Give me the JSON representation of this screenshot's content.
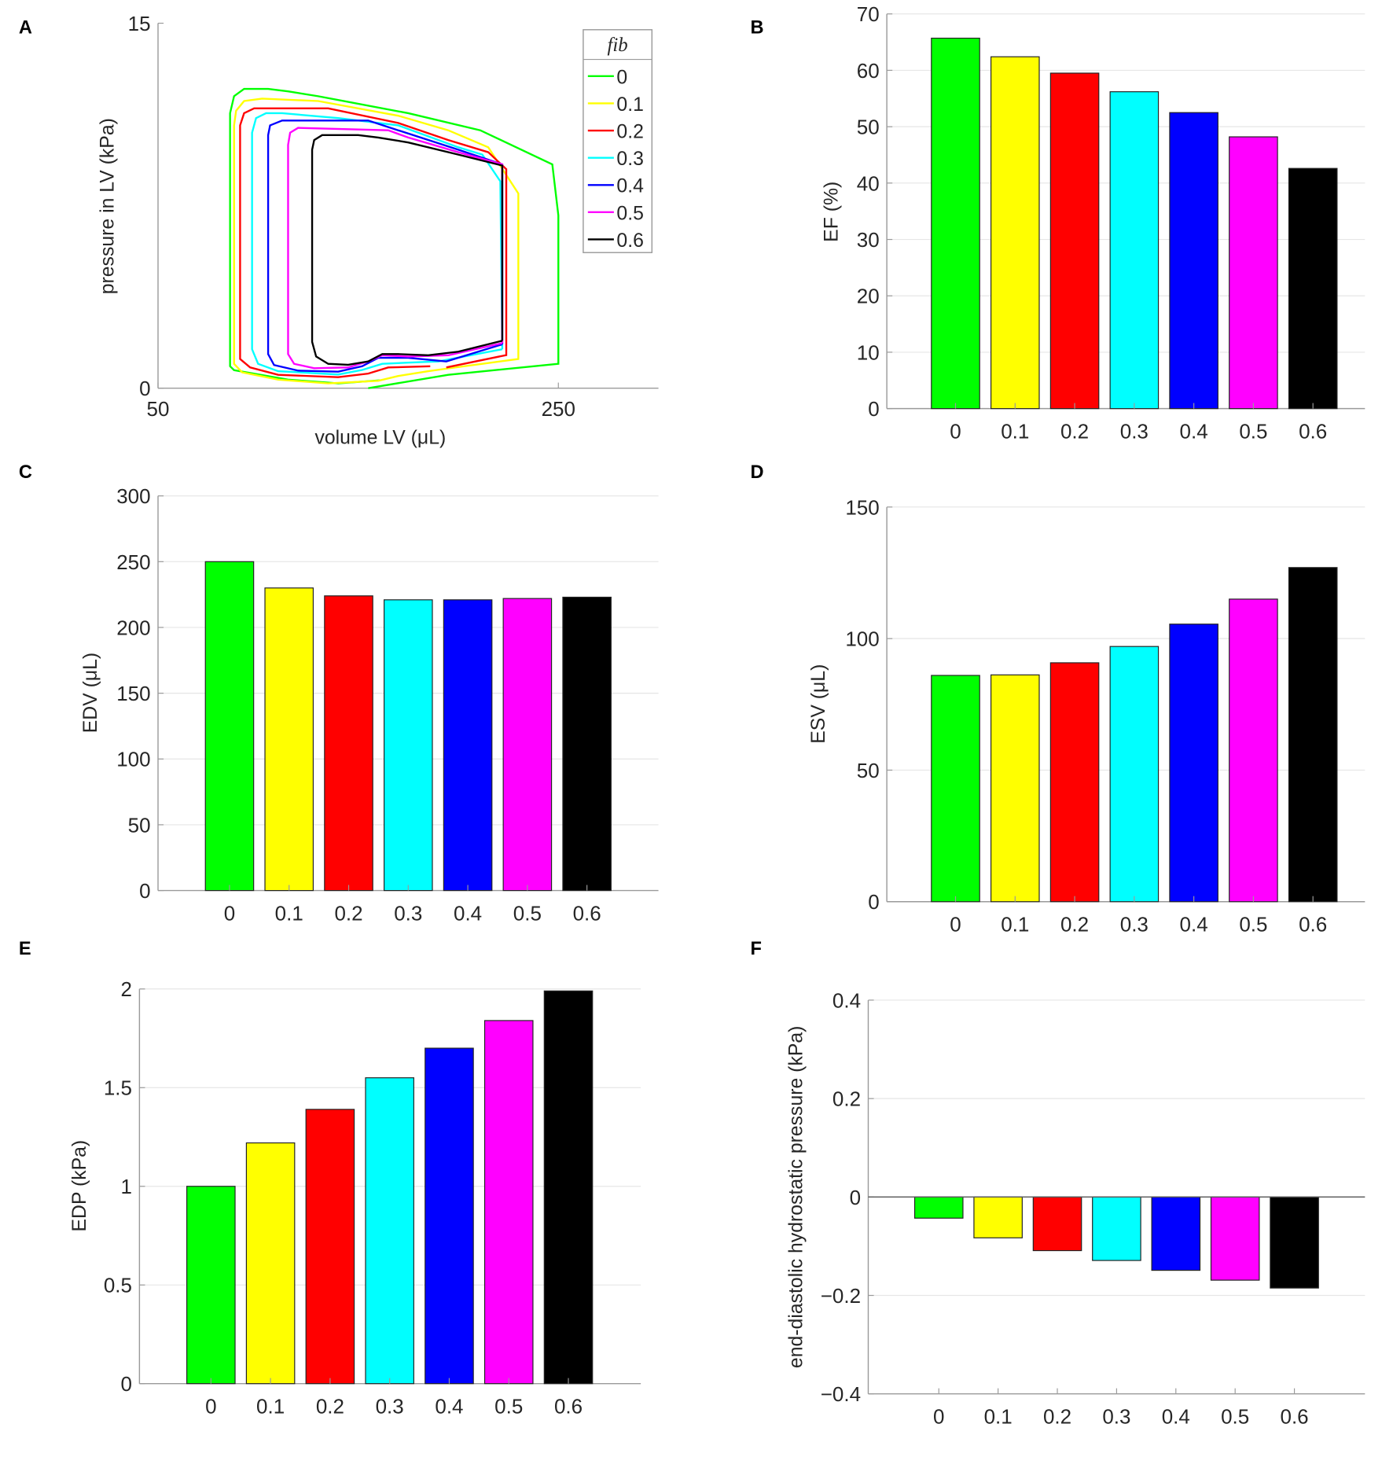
{
  "chart_data": [
    {
      "panel": "A",
      "type": "line",
      "xlabel": "volume LV (μL)",
      "ylabel": "pressure in LV (kPa)",
      "xlim": [
        50,
        300
      ],
      "ylim": [
        0,
        15
      ],
      "xticks": [
        50,
        250
      ],
      "yticks": [
        0,
        15
      ],
      "grid": false,
      "legend": {
        "title": "fib",
        "placement": "top-right"
      },
      "series": [
        {
          "name": "0",
          "color": "#00ff00",
          "points": [
            [
              155,
              0
            ],
            [
              195,
              0.55
            ],
            [
              250,
              1.0
            ],
            [
              250,
              7.1
            ],
            [
              247,
              9.2
            ],
            [
              211,
              10.6
            ],
            [
              175,
              11.3
            ],
            [
              130,
              12.0
            ],
            [
              115,
              12.2
            ],
            [
              105,
              12.3
            ],
            [
              93,
              12.3
            ],
            [
              88,
              12.0
            ],
            [
              86,
              11.3
            ],
            [
              86,
              0.9
            ],
            [
              88,
              0.74
            ],
            [
              115,
              0.35
            ],
            [
              140,
              0.2
            ],
            [
              161,
              0.32
            ]
          ]
        },
        {
          "name": "0.1",
          "color": "#ffff00",
          "points": [
            [
              194,
              0.8
            ],
            [
              230,
              1.2
            ],
            [
              230,
              8.0
            ],
            [
              215,
              9.9
            ],
            [
              195,
              10.6
            ],
            [
              170,
              11.2
            ],
            [
              130,
              11.8
            ],
            [
              102,
              11.9
            ],
            [
              93,
              11.8
            ],
            [
              89,
              11.4
            ],
            [
              88,
              10.8
            ],
            [
              88,
              1.0
            ],
            [
              92,
              0.65
            ],
            [
              110,
              0.35
            ],
            [
              135,
              0.2
            ],
            [
              160,
              0.3
            ],
            [
              170,
              0.5
            ],
            [
              185,
              0.7
            ],
            [
              194,
              0.8
            ]
          ]
        },
        {
          "name": "0.2",
          "color": "#ff0000",
          "points": [
            [
              194,
              0.85
            ],
            [
              224,
              1.36
            ],
            [
              224,
              9.0
            ],
            [
              215,
              9.7
            ],
            [
              195,
              10.2
            ],
            [
              170,
              10.9
            ],
            [
              135,
              11.5
            ],
            [
              98,
              11.5
            ],
            [
              93,
              11.3
            ],
            [
              91,
              10.8
            ],
            [
              91,
              1.2
            ],
            [
              96,
              0.85
            ],
            [
              110,
              0.55
            ],
            [
              140,
              0.45
            ],
            [
              155,
              0.6
            ],
            [
              165,
              0.85
            ],
            [
              186,
              0.9
            ]
          ]
        },
        {
          "name": "0.3",
          "color": "#00ffff",
          "points": [
            [
              222,
              1.6
            ],
            [
              221,
              8.5
            ],
            [
              212,
              9.6
            ],
            [
              200,
              9.9
            ],
            [
              170,
              10.8
            ],
            [
              140,
              11.1
            ],
            [
              112,
              11.3
            ],
            [
              104,
              11.3
            ],
            [
              99,
              11.1
            ],
            [
              97,
              10.5
            ],
            [
              97,
              1.6
            ],
            [
              100,
              1.0
            ],
            [
              110,
              0.7
            ],
            [
              140,
              0.56
            ],
            [
              152,
              0.75
            ],
            [
              162,
              1.0
            ],
            [
              175,
              1.05
            ],
            [
              190,
              1.1
            ],
            [
              222,
              1.6
            ]
          ]
        },
        {
          "name": "0.4",
          "color": "#0000ff",
          "points": [
            [
              222,
              1.8
            ],
            [
              222,
              9.2
            ],
            [
              200,
              9.8
            ],
            [
              170,
              10.6
            ],
            [
              155,
              11.0
            ],
            [
              112,
              11.0
            ],
            [
              106,
              10.8
            ],
            [
              105,
              10.4
            ],
            [
              105,
              1.4
            ],
            [
              108,
              0.95
            ],
            [
              120,
              0.72
            ],
            [
              140,
              0.68
            ],
            [
              152,
              0.9
            ],
            [
              160,
              1.25
            ],
            [
              175,
              1.25
            ],
            [
              194,
              1.1
            ],
            [
              222,
              1.8
            ]
          ]
        },
        {
          "name": "0.5",
          "color": "#ff00ff",
          "points": [
            [
              222,
              1.85
            ],
            [
              222,
              9.2
            ],
            [
              200,
              9.7
            ],
            [
              175,
              10.3
            ],
            [
              165,
              10.6
            ],
            [
              120,
              10.7
            ],
            [
              116,
              10.5
            ],
            [
              115,
              10.0
            ],
            [
              115,
              1.4
            ],
            [
              118,
              1.0
            ],
            [
              128,
              0.82
            ],
            [
              145,
              0.85
            ],
            [
              155,
              1.1
            ],
            [
              162,
              1.35
            ],
            [
              175,
              1.3
            ],
            [
              195,
              1.35
            ],
            [
              222,
              1.85
            ]
          ]
        },
        {
          "name": "0.6",
          "color": "#000000",
          "points": [
            [
              222,
              1.95
            ],
            [
              222,
              9.15
            ],
            [
              200,
              9.6
            ],
            [
              175,
              10.1
            ],
            [
              160,
              10.3
            ],
            [
              150,
              10.4
            ],
            [
              132,
              10.4
            ],
            [
              128,
              10.2
            ],
            [
              127,
              9.8
            ],
            [
              127,
              1.9
            ],
            [
              129,
              1.3
            ],
            [
              135,
              1.0
            ],
            [
              145,
              0.96
            ],
            [
              155,
              1.1
            ],
            [
              162,
              1.4
            ],
            [
              170,
              1.4
            ],
            [
              185,
              1.35
            ],
            [
              200,
              1.5
            ],
            [
              222,
              1.95
            ]
          ]
        }
      ]
    },
    {
      "panel": "B",
      "type": "bar",
      "xlabel": "",
      "ylabel": "EF (%)",
      "categories": [
        "0",
        "0.1",
        "0.2",
        "0.3",
        "0.4",
        "0.5",
        "0.6"
      ],
      "values": [
        65.7,
        62.4,
        59.5,
        56.2,
        52.5,
        48.2,
        42.6
      ],
      "colors": [
        "#00ff00",
        "#ffff00",
        "#ff0000",
        "#00ffff",
        "#0000ff",
        "#ff00ff",
        "#000000"
      ],
      "ylim": [
        0,
        70
      ],
      "yticks": [
        0,
        10,
        20,
        30,
        40,
        50,
        60,
        70
      ],
      "grid": true
    },
    {
      "panel": "C",
      "type": "bar",
      "xlabel": "",
      "ylabel": "EDV (μL)",
      "categories": [
        "0",
        "0.1",
        "0.2",
        "0.3",
        "0.4",
        "0.5",
        "0.6"
      ],
      "values": [
        250,
        230,
        224,
        221,
        221,
        222,
        223
      ],
      "colors": [
        "#00ff00",
        "#ffff00",
        "#ff0000",
        "#00ffff",
        "#0000ff",
        "#ff00ff",
        "#000000"
      ],
      "ylim": [
        0,
        300
      ],
      "yticks": [
        0,
        50,
        100,
        150,
        200,
        250,
        300
      ],
      "grid": true
    },
    {
      "panel": "D",
      "type": "bar",
      "xlabel": "",
      "ylabel": "ESV (μL)",
      "categories": [
        "0",
        "0.1",
        "0.2",
        "0.3",
        "0.4",
        "0.5",
        "0.6"
      ],
      "values": [
        86,
        86.2,
        90.8,
        97,
        105.5,
        115,
        127
      ],
      "colors": [
        "#00ff00",
        "#ffff00",
        "#ff0000",
        "#00ffff",
        "#0000ff",
        "#ff00ff",
        "#000000"
      ],
      "ylim": [
        0,
        150
      ],
      "yticks": [
        0,
        50,
        100,
        150
      ],
      "grid": true
    },
    {
      "panel": "E",
      "type": "bar",
      "xlabel": "",
      "ylabel": "EDP (kPa)",
      "categories": [
        "0",
        "0.1",
        "0.2",
        "0.3",
        "0.4",
        "0.5",
        "0.6"
      ],
      "values": [
        1.0,
        1.22,
        1.39,
        1.55,
        1.7,
        1.84,
        1.99
      ],
      "colors": [
        "#00ff00",
        "#ffff00",
        "#ff0000",
        "#00ffff",
        "#0000ff",
        "#ff00ff",
        "#000000"
      ],
      "ylim": [
        0,
        2
      ],
      "yticks": [
        "0",
        "0.5",
        "1",
        "1.5",
        "2"
      ],
      "grid": true
    },
    {
      "panel": "F",
      "type": "bar",
      "xlabel": "",
      "ylabel": "end-diastolic hydrostatic pressure (kPa)",
      "categories": [
        "0",
        "0.1",
        "0.2",
        "0.3",
        "0.4",
        "0.5",
        "0.6"
      ],
      "values": [
        -0.043,
        -0.083,
        -0.109,
        -0.129,
        -0.149,
        -0.169,
        -0.185
      ],
      "colors": [
        "#00ff00",
        "#ffff00",
        "#ff0000",
        "#00ffff",
        "#0000ff",
        "#ff00ff",
        "#000000"
      ],
      "ylim": [
        -0.4,
        0.4
      ],
      "yticks": [
        "-0.4",
        "-0.2",
        "0",
        "0.2",
        "0.4"
      ],
      "grid": true
    }
  ]
}
